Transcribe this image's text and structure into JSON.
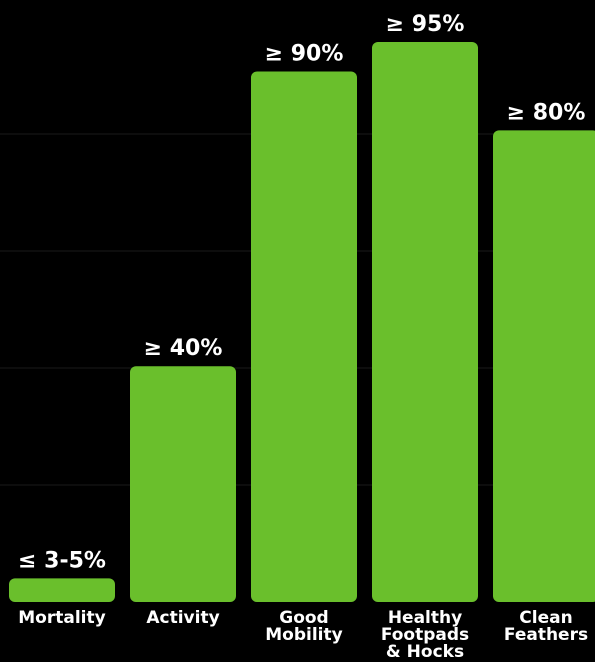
{
  "chart_data": {
    "type": "bar",
    "categories": [
      [
        "Mortality"
      ],
      [
        "Activity"
      ],
      [
        "Good",
        "Mobility"
      ],
      [
        "Healthy",
        "Footpads",
        "& Hocks"
      ],
      [
        "Clean",
        "Feathers"
      ]
    ],
    "values": [
      4,
      40,
      90,
      95,
      80
    ],
    "data_labels": [
      "≤ 3-5%",
      "≥ 40%",
      "≥ 90%",
      "≥ 95%",
      "≥ 80%"
    ],
    "ylim": [
      0,
      100
    ],
    "grid": true,
    "colors": {
      "bar": "#6abf2c",
      "background": "#000000",
      "text": "#ffffff"
    }
  }
}
